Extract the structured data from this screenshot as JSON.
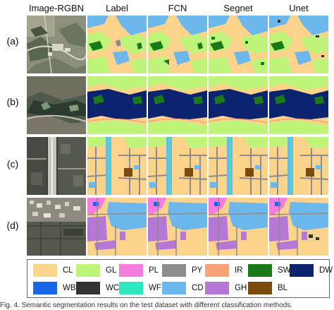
{
  "columns": [
    "Image-RGBN",
    "Label",
    "FCN",
    "Segnet",
    "Unet"
  ],
  "rows": [
    "(a)",
    "(b)",
    "(c)",
    "(d)"
  ],
  "legend": [
    {
      "code": "CL",
      "color": "#fbd38a"
    },
    {
      "code": "GL",
      "color": "#bff47a"
    },
    {
      "code": "PL",
      "color": "#f57bde"
    },
    {
      "code": "PY",
      "color": "#8c8c8c"
    },
    {
      "code": "IR",
      "color": "#f9a27a"
    },
    {
      "code": "SW",
      "color": "#1a7a1a"
    },
    {
      "code": "DW",
      "color": "#0c2370"
    },
    {
      "code": "WB",
      "color": "#1a66e8"
    },
    {
      "code": "WC",
      "color": "#333333"
    },
    {
      "code": "WF",
      "color": "#2ee8c0"
    },
    {
      "code": "CD",
      "color": "#6cb8ec"
    },
    {
      "code": "GH",
      "color": "#b678d6"
    },
    {
      "code": "BL",
      "color": "#7a4a0e"
    }
  ],
  "caption": "Fig. 4. Semantic segmentation results on the test dataset with different classification methods."
}
